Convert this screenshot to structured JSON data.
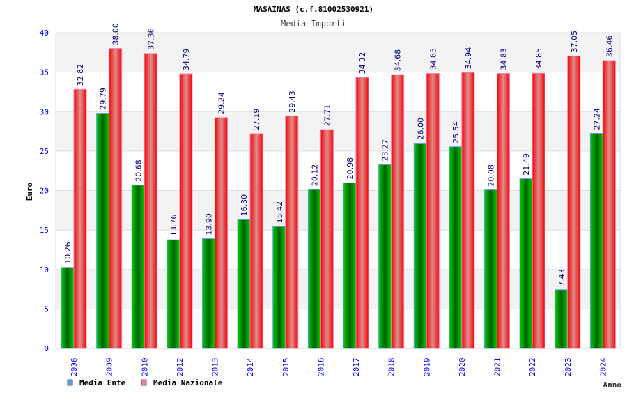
{
  "chart_data": {
    "type": "bar",
    "title": "MASAINAS (c.f.81002530921)",
    "subtitle": "Media Importi",
    "xlabel": "Anno",
    "ylabel": "Euro",
    "ylim": [
      0,
      40
    ],
    "yticks": [
      0,
      5,
      10,
      15,
      20,
      25,
      30,
      35,
      40
    ],
    "grid": true,
    "legend_position": "bottom-left",
    "categories": [
      "2006",
      "2009",
      "2010",
      "2012",
      "2013",
      "2014",
      "2015",
      "2016",
      "2017",
      "2018",
      "2019",
      "2020",
      "2021",
      "2022",
      "2023",
      "2024"
    ],
    "series": [
      {
        "name": "Media Ente",
        "color": "#00a000",
        "legend_color": "#5b9be0",
        "values": [
          10.26,
          29.79,
          20.68,
          13.76,
          13.9,
          16.3,
          15.42,
          20.12,
          20.98,
          23.27,
          26.0,
          25.54,
          20.08,
          21.49,
          7.43,
          27.24
        ],
        "labels": [
          "10.26",
          "29.79",
          "20.68",
          "13.76",
          "13.90",
          "16.30",
          "15.42",
          "20.12",
          "20.98",
          "23.27",
          "26.00",
          "25.54",
          "20.08",
          "21.49",
          "7.43",
          "27.24"
        ]
      },
      {
        "name": "Media Nazionale",
        "color": "#ff0000",
        "legend_color": "#e87fb0",
        "values": [
          32.82,
          38.0,
          37.36,
          34.79,
          29.24,
          27.19,
          29.43,
          27.71,
          34.32,
          34.68,
          34.83,
          34.94,
          34.83,
          34.85,
          37.05,
          36.46
        ],
        "labels": [
          "32.82",
          "38.00",
          "37.36",
          "34.79",
          "29.24",
          "27.19",
          "29.43",
          "27.71",
          "34.32",
          "34.68",
          "34.83",
          "34.94",
          "34.83",
          "34.85",
          "37.05",
          "36.46"
        ]
      }
    ]
  }
}
